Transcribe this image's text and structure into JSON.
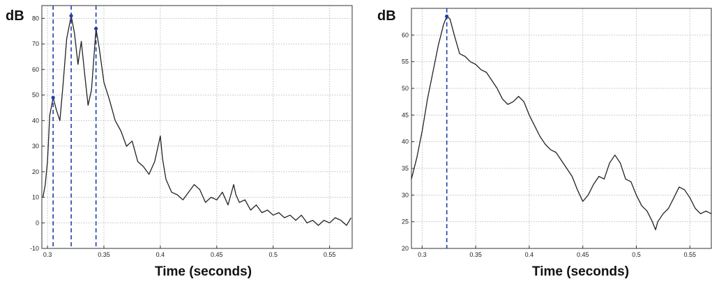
{
  "chart_data": [
    {
      "type": "line",
      "ylabel": "dB",
      "xlabel": "Time (seconds)",
      "xlim": [
        0.295,
        0.57
      ],
      "ylim": [
        -10,
        85
      ],
      "x_ticks": [
        0.3,
        0.35,
        0.4,
        0.45,
        0.5,
        0.55
      ],
      "x_tick_labels": [
        "0.3",
        "0.35",
        "0.4",
        "0.45",
        "0.5",
        "0.55"
      ],
      "y_ticks": [
        -10,
        0,
        10,
        20,
        30,
        40,
        50,
        60,
        70,
        80
      ],
      "y_tick_labels": [
        "-10",
        "0",
        "10",
        "20",
        "30",
        "40",
        "50",
        "60",
        "70",
        "80"
      ],
      "grid": true,
      "line_color": "#222222",
      "marker_color": "#1f3fa8",
      "vlines_x": [
        0.305,
        0.321,
        0.343
      ],
      "peaks": [
        {
          "x": 0.305,
          "y": 49
        },
        {
          "x": 0.321,
          "y": 81
        },
        {
          "x": 0.343,
          "y": 76
        }
      ],
      "series": [
        {
          "x": [
            0.296,
            0.298,
            0.3,
            0.302,
            0.305,
            0.308,
            0.311,
            0.314,
            0.317,
            0.321,
            0.324,
            0.327,
            0.33,
            0.333,
            0.336,
            0.339,
            0.343,
            0.346,
            0.35,
            0.355,
            0.36,
            0.365,
            0.37,
            0.375,
            0.38,
            0.385,
            0.39,
            0.395,
            0.398,
            0.4,
            0.402,
            0.405,
            0.41,
            0.415,
            0.42,
            0.425,
            0.43,
            0.435,
            0.44,
            0.445,
            0.45,
            0.455,
            0.46,
            0.465,
            0.467,
            0.47,
            0.475,
            0.48,
            0.485,
            0.49,
            0.495,
            0.5,
            0.505,
            0.51,
            0.515,
            0.52,
            0.525,
            0.53,
            0.535,
            0.54,
            0.545,
            0.55,
            0.555,
            0.56,
            0.565,
            0.569
          ],
          "y": [
            10,
            15,
            24,
            42,
            49,
            44,
            40,
            55,
            72,
            81,
            74,
            62,
            71,
            58,
            46,
            52,
            76,
            68,
            55,
            48,
            40,
            36,
            30,
            32,
            24,
            22,
            19,
            24,
            30,
            34,
            25,
            17,
            12,
            11,
            9,
            12,
            15,
            13,
            8,
            10,
            9,
            12,
            7,
            15,
            11,
            8,
            9,
            5,
            7,
            4,
            5,
            3,
            4,
            2,
            3,
            1,
            3,
            0,
            1,
            -1,
            1,
            0,
            2,
            1,
            -1,
            2
          ]
        }
      ]
    },
    {
      "type": "line",
      "ylabel": "dB",
      "xlabel": "Time (seconds)",
      "xlim": [
        0.29,
        0.57
      ],
      "ylim": [
        20,
        65
      ],
      "x_ticks": [
        0.3,
        0.35,
        0.4,
        0.45,
        0.5,
        0.55
      ],
      "x_tick_labels": [
        "0.3",
        "0.35",
        "0.4",
        "0.45",
        "0.5",
        "0.55"
      ],
      "y_ticks": [
        20,
        25,
        30,
        35,
        40,
        45,
        50,
        55,
        60
      ],
      "y_tick_labels": [
        "20",
        "25",
        "30",
        "35",
        "40",
        "45",
        "50",
        "55",
        "60"
      ],
      "grid": true,
      "line_color": "#222222",
      "marker_color": "#1f3fa8",
      "vlines_x": [
        0.323
      ],
      "peaks": [
        {
          "x": 0.323,
          "y": 63.5
        }
      ],
      "series": [
        {
          "x": [
            0.29,
            0.295,
            0.3,
            0.305,
            0.31,
            0.315,
            0.32,
            0.323,
            0.326,
            0.33,
            0.335,
            0.34,
            0.345,
            0.35,
            0.355,
            0.36,
            0.365,
            0.37,
            0.375,
            0.38,
            0.385,
            0.39,
            0.395,
            0.4,
            0.405,
            0.41,
            0.415,
            0.42,
            0.425,
            0.43,
            0.435,
            0.44,
            0.445,
            0.45,
            0.455,
            0.46,
            0.465,
            0.47,
            0.475,
            0.48,
            0.485,
            0.49,
            0.495,
            0.5,
            0.505,
            0.51,
            0.515,
            0.518,
            0.52,
            0.525,
            0.53,
            0.535,
            0.54,
            0.545,
            0.55,
            0.555,
            0.56,
            0.565,
            0.57
          ],
          "y": [
            33,
            37,
            42,
            48,
            53,
            58,
            62,
            63.5,
            63,
            60,
            56.5,
            56,
            55,
            54.5,
            53.5,
            53,
            51.5,
            50,
            48,
            47,
            47.5,
            48.5,
            47.5,
            45,
            43,
            41,
            39.5,
            38.5,
            38,
            36.5,
            35,
            33.5,
            31,
            28.8,
            30,
            32,
            33.5,
            33,
            36,
            37.5,
            36,
            33,
            32.5,
            30,
            28,
            27,
            25,
            23.5,
            25,
            26.5,
            27.5,
            29.5,
            31.5,
            31,
            29.5,
            27.5,
            26.5,
            27,
            26.5
          ]
        }
      ]
    }
  ]
}
